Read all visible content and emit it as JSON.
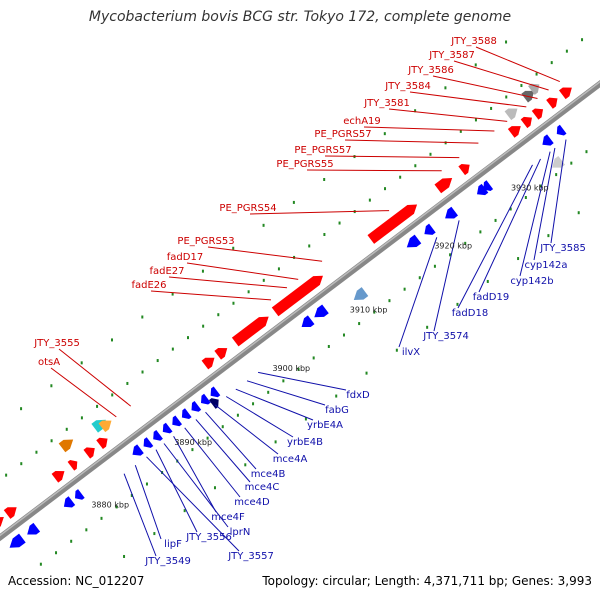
{
  "title": "Mycobacterium bovis BCG str. Tokyo 172, complete genome",
  "accession": "Accession: NC_012207",
  "summary": "Topology: circular; Length: 4,371,711 bp; Genes: 3,993",
  "colors": {
    "forward_gene": "#ff0000",
    "reverse_gene": "#0000ff",
    "backbone": "#888888",
    "label_forward": "#cc0000",
    "label_reverse": "#1010aa",
    "tick_dot": "#228822"
  },
  "coordinate_ticks": [
    "3880 kbp",
    "3890 kbp",
    "3900 kbp",
    "3910 kbp",
    "3920 kbp",
    "3930 kbp"
  ],
  "forward_labels": [
    "JTY_3588",
    "JTY_3587",
    "JTY_3586",
    "JTY_3584",
    "JTY_3581",
    "echA19",
    "PE_PGRS57",
    "PE_PGRS57",
    "PE_PGRS55",
    "PE_PGRS54",
    "PE_PGRS53",
    "fadD17",
    "fadE27",
    "fadE26",
    "JTY_3555",
    "otsA"
  ],
  "reverse_labels": [
    "JTY_3585",
    "cyp142a",
    "cyp142b",
    "fadD19",
    "fadD18",
    "JTY_3574",
    "ilvX",
    "fdxD",
    "fabG",
    "yrbE4A",
    "yrbE4B",
    "mce4A",
    "mce4B",
    "mce4C",
    "mce4D",
    "mce4F",
    "lprN",
    "JTY_3556",
    "JTY_3557",
    "lipF",
    "JTY_3549"
  ]
}
